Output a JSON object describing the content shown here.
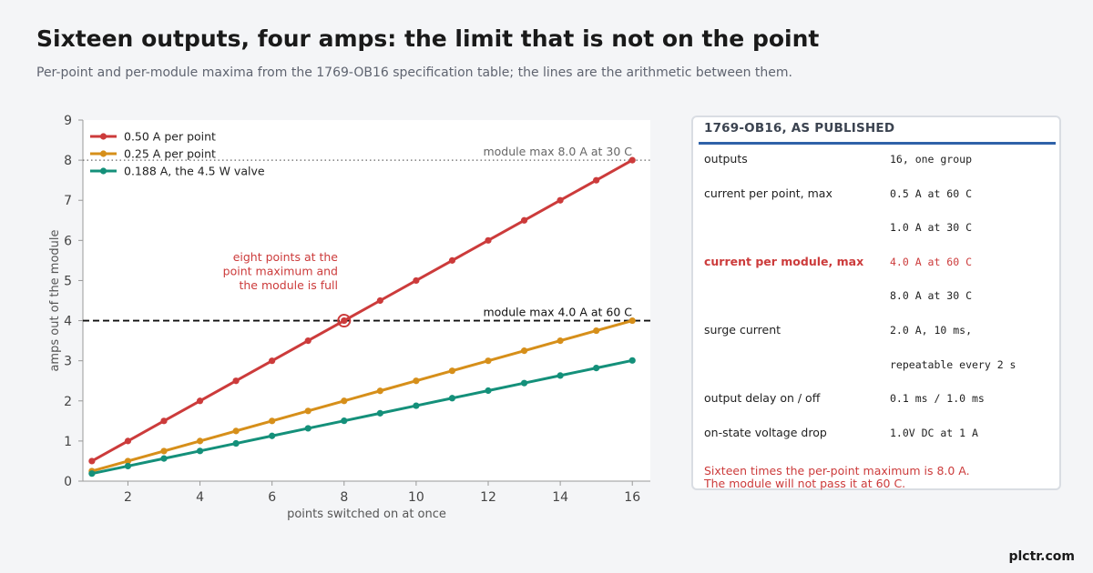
{
  "title": "Sixteen outputs, four amps: the limit that is not on the point",
  "subtitle": "Per-point and per-module maxima from the 1769-OB16 specification table; the lines are the arithmetic between them.",
  "brand": "plctr.com",
  "chart_data": {
    "type": "line",
    "xlabel": "points switched on at once",
    "ylabel": "amps out of the module",
    "xlim": [
      0.75,
      16.5
    ],
    "ylim": [
      0,
      9
    ],
    "xticks": [
      2,
      4,
      6,
      8,
      10,
      12,
      14,
      16
    ],
    "yticks": [
      0,
      1,
      2,
      3,
      4,
      5,
      6,
      7,
      8,
      9
    ],
    "grid": false,
    "legend_position": "top-left",
    "x": [
      1,
      2,
      3,
      4,
      5,
      6,
      7,
      8,
      9,
      10,
      11,
      12,
      13,
      14,
      15,
      16
    ],
    "series": [
      {
        "name": "0.50 A per point",
        "color": "#cc3b3b",
        "values": [
          0.5,
          1.0,
          1.5,
          2.0,
          2.5,
          3.0,
          3.5,
          4.0,
          4.5,
          5.0,
          5.5,
          6.0,
          6.5,
          7.0,
          7.5,
          8.0
        ]
      },
      {
        "name": "0.25 A per point",
        "color": "#d68f1a",
        "values": [
          0.25,
          0.5,
          0.75,
          1.0,
          1.25,
          1.5,
          1.75,
          2.0,
          2.25,
          2.5,
          2.75,
          3.0,
          3.25,
          3.5,
          3.75,
          4.0
        ]
      },
      {
        "name": "0.188 A, the 4.5 W valve",
        "color": "#14907a",
        "values": [
          0.188,
          0.376,
          0.564,
          0.752,
          0.94,
          1.128,
          1.316,
          1.504,
          1.692,
          1.88,
          2.068,
          2.256,
          2.444,
          2.632,
          2.82,
          3.008
        ]
      }
    ],
    "reference_lines": [
      {
        "y": 8.0,
        "label": "module max 8.0 A at 30 C",
        "style": "dotted",
        "color": "#666666"
      },
      {
        "y": 4.0,
        "label": "module max 4.0 A at 60 C",
        "style": "dashed",
        "color": "#111111"
      }
    ],
    "highlight": {
      "x": 8,
      "y": 4.0,
      "color": "#cc3b3b",
      "annotation": [
        "eight points at the",
        "point maximum and",
        "the module is full"
      ]
    }
  },
  "spec_panel": {
    "title": "1769-OB16, AS PUBLISHED",
    "rows": [
      {
        "label": "outputs",
        "value": "16, one group",
        "highlight": false
      },
      {
        "label": "current per point, max",
        "value": "0.5 A at 60 C",
        "highlight": false
      },
      {
        "label": "",
        "value": "1.0 A at 30 C",
        "highlight": false
      },
      {
        "label": "current per module, max",
        "value": "4.0 A at 60 C",
        "highlight": true
      },
      {
        "label": "",
        "value": "8.0 A at 30 C",
        "highlight": false
      },
      {
        "label": "surge current",
        "value": "2.0 A, 10 ms,",
        "highlight": false
      },
      {
        "label": "",
        "value": "repeatable every 2 s",
        "highlight": false
      },
      {
        "label": "output delay on / off",
        "value": "0.1 ms / 1.0 ms",
        "highlight": false
      },
      {
        "label": "on-state voltage drop",
        "value": "1.0V DC at 1 A",
        "highlight": false
      }
    ],
    "note": [
      "Sixteen times the per-point maximum is 8.0 A.",
      "The module will not pass it at 60 C."
    ]
  }
}
